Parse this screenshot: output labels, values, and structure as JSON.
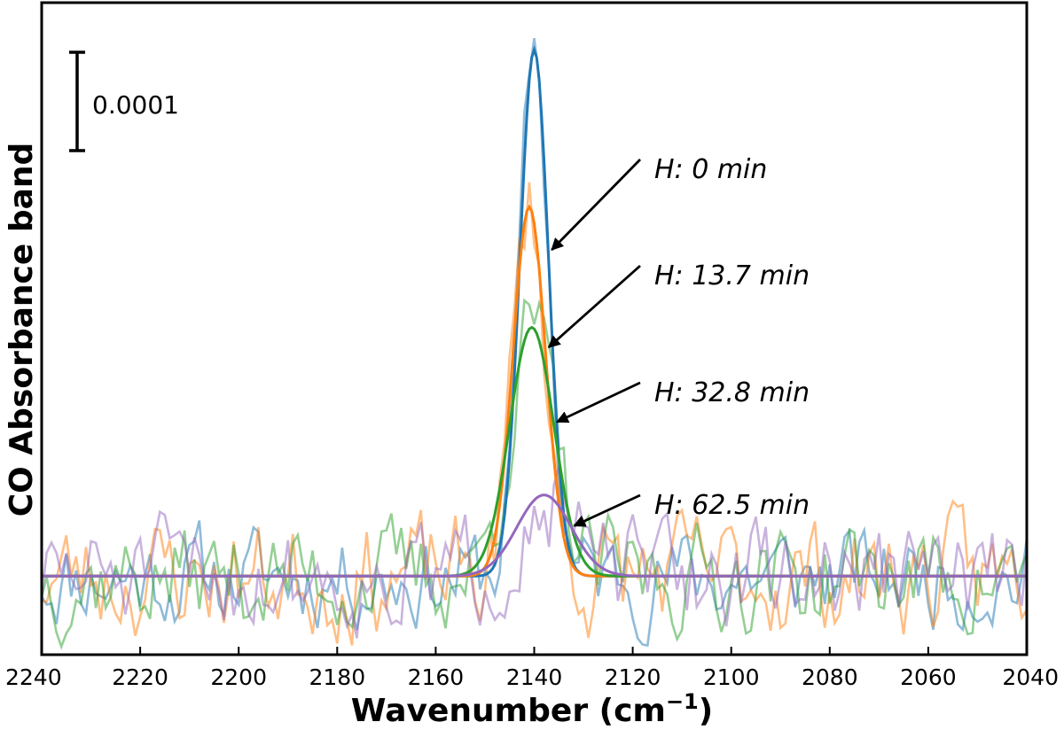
{
  "chart_data": {
    "type": "line",
    "xlabel": "Wavenumber (cm",
    "xlabel_superscript": "−1",
    "xlabel_close": ")",
    "ylabel": "CO Absorbance band",
    "xlim": [
      2240,
      2040
    ],
    "x_reversed": true,
    "ylim": [
      -1.5e-05,
      0.0001095
    ],
    "y_ticks_shown": false,
    "grid": false,
    "x_ticks": [
      2240,
      2220,
      2200,
      2180,
      2160,
      2140,
      2120,
      2100,
      2080,
      2060,
      2040
    ],
    "scale_bar": {
      "label": "0.0001",
      "value": 0.0001
    },
    "colors": {
      "blue": "#1f77b4",
      "orange": "#ff7f0e",
      "green": "#2ca02c",
      "purple": "#9467bd"
    },
    "series": [
      {
        "annotation": "H: 0 min",
        "color": "#1f77b4",
        "center": 2140,
        "amplitude": 0.0001005,
        "sigma": 2.9,
        "noise_seed": 11,
        "noise_amp": 4.5e-06
      },
      {
        "annotation": "H: 13.7 min",
        "color": "#ff7f0e",
        "center": 2141,
        "amplitude": 7.05e-05,
        "sigma": 3.3,
        "noise_seed": 23,
        "noise_amp": 5.5e-06
      },
      {
        "annotation": "H: 32.8 min",
        "color": "#2ca02c",
        "center": 2140.5,
        "amplitude": 4.75e-05,
        "sigma": 4.5,
        "noise_seed": 37,
        "noise_amp": 5e-06
      },
      {
        "annotation": "H: 62.5 min",
        "color": "#9467bd",
        "center": 2138,
        "amplitude": 1.55e-05,
        "sigma": 5.5,
        "noise_seed": 51,
        "noise_amp": 5e-06
      }
    ]
  }
}
